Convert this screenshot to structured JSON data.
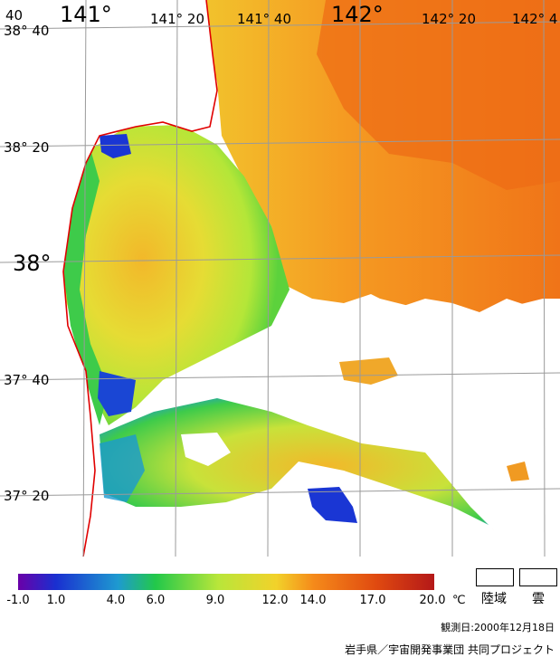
{
  "map": {
    "lat_labels": [
      "38° 40",
      "38° 20",
      "38°",
      "37° 40",
      "37° 20"
    ],
    "lon_labels": [
      "40",
      "141°",
      "141° 20",
      "141° 40",
      "142°",
      "142° 20",
      "142° 4"
    ]
  },
  "legend": {
    "ticks": [
      "-1.0",
      "1.0",
      "4.0",
      "6.0",
      "9.0",
      "12.0",
      "14.0",
      "17.0",
      "20.0"
    ],
    "unit": "℃",
    "land_label": "陸域",
    "cloud_label": "雲",
    "colors": [
      "#6a00a8",
      "#1a2fd0",
      "#1e9ad0",
      "#22c84a",
      "#b8e63a",
      "#f2d22a",
      "#f58a1a",
      "#e04a10",
      "#b41818"
    ]
  },
  "observation_date": "観測日:2000年12月18日",
  "credit": "岩手県／宇宙開発事業団 共同プロジェクト"
}
